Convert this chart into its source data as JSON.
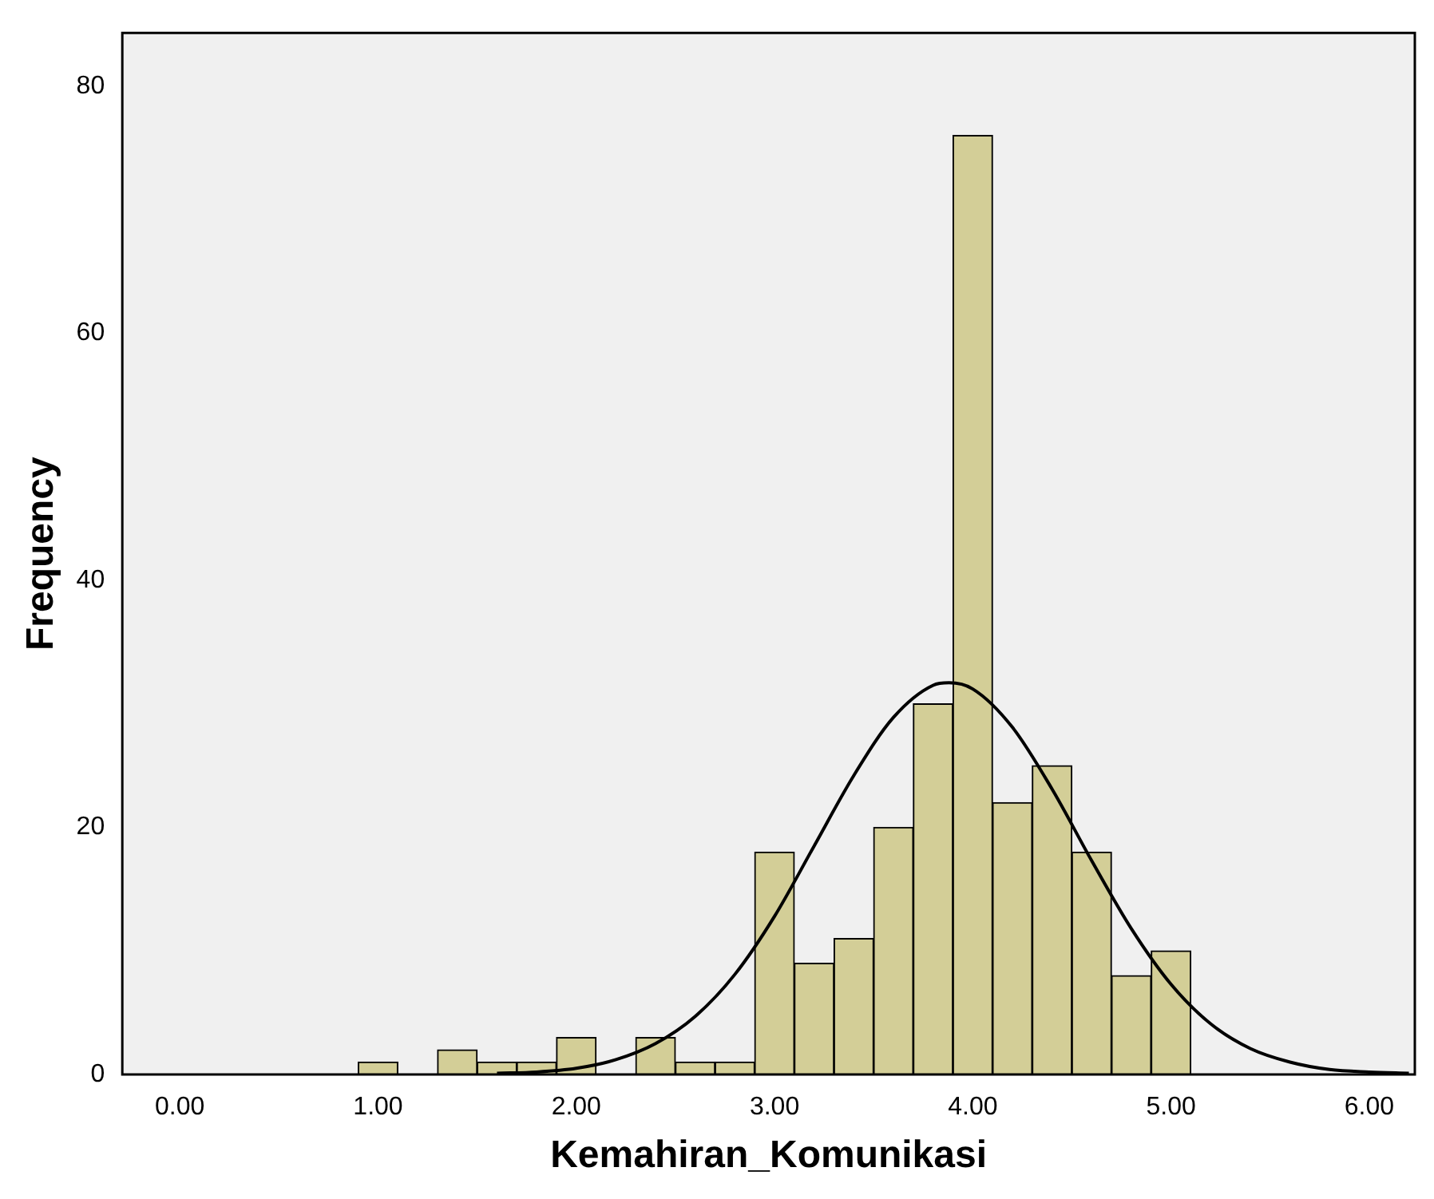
{
  "chart_data": {
    "type": "histogram",
    "xlabel": "Kemahiran_Komunikasi",
    "ylabel": "Frequency",
    "bins": [
      0.9,
      1.1,
      1.3,
      1.5,
      1.7,
      1.9,
      2.1,
      2.3,
      2.5,
      2.7,
      2.9,
      3.1,
      3.3,
      3.5,
      3.7,
      3.9,
      4.1,
      4.3,
      4.5,
      4.7,
      4.9,
      5.1
    ],
    "values": [
      1,
      0,
      2,
      1,
      1,
      3,
      0,
      3,
      1,
      1,
      18,
      9,
      11,
      20,
      30,
      76,
      22,
      25,
      18,
      8,
      10
    ],
    "color": "#d3ce97",
    "series": [
      {
        "type": "line",
        "color": "#000000",
        "x": [
          1.6,
          1.8,
          2.0,
          2.2,
          2.4,
          2.6,
          2.8,
          3.0,
          3.2,
          3.4,
          3.6,
          3.8,
          3.88,
          4.0,
          4.2,
          4.4,
          4.6,
          4.8,
          5.0,
          5.2,
          5.4,
          5.6,
          5.8,
          6.0,
          6.2
        ],
        "values": [
          0.1,
          0.2,
          0.5,
          1.2,
          2.5,
          4.7,
          8.1,
          12.8,
          18.5,
          24.2,
          28.9,
          31.5,
          31.7,
          31.2,
          28.1,
          23.1,
          17.3,
          11.8,
          7.3,
          4.1,
          2.1,
          1.0,
          0.4,
          0.2,
          0.1
        ]
      }
    ],
    "xlim": [
      -0.29,
      6.23
    ],
    "ylim": [
      0,
      84.3
    ],
    "xticks": [
      {
        "value": 0,
        "label": "0.00"
      },
      {
        "value": 1,
        "label": "1.00"
      },
      {
        "value": 2,
        "label": "2.00"
      },
      {
        "value": 3,
        "label": "3.00"
      },
      {
        "value": 4,
        "label": "4.00"
      },
      {
        "value": 5,
        "label": "5.00"
      },
      {
        "value": 6,
        "label": "6.00"
      }
    ],
    "yticks": [
      0,
      20,
      40,
      60,
      80
    ],
    "grid": false,
    "legend": false,
    "marker": "none",
    "line_style": "solid"
  }
}
